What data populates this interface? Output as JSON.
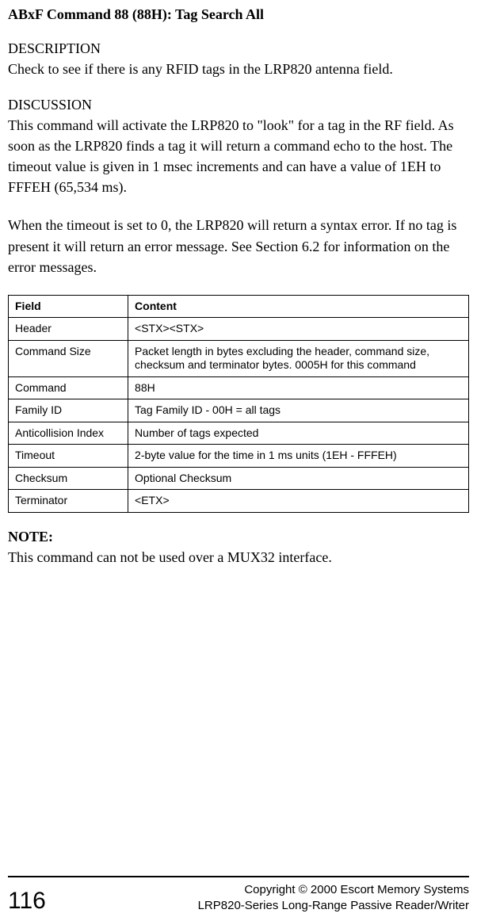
{
  "title": "ABxF Command 88 (88H): Tag Search All",
  "description": {
    "header": "DESCRIPTION",
    "text": "Check to see if there is any RFID tags in the LRP820 antenna field."
  },
  "discussion": {
    "header": "DISCUSSION",
    "p1": "This command will activate the LRP820 to \"look\" for a tag in the RF field. As soon as the LRP820 finds a tag it will return a command echo to the host. The timeout value is given in 1 msec increments and can have a value of 1EH to FFFEH (65,534 ms).",
    "p2": "When the timeout is set to 0, the LRP820 will return a syntax error. If no tag is present it will return an error message.  See Section 6.2 for information on the error messages."
  },
  "table": {
    "header_field": "Field",
    "header_content": "Content",
    "rows": [
      {
        "field": "Header",
        "content": "<STX><STX>"
      },
      {
        "field": "Command Size",
        "content": "Packet length in bytes excluding the header, command size, checksum and terminator bytes.  0005H for this command"
      },
      {
        "field": "Command",
        "content": "88H"
      },
      {
        "field": "Family ID",
        "content": "Tag Family ID - 00H = all tags"
      },
      {
        "field": "Anticollision Index",
        "content": "Number of tags expected"
      },
      {
        "field": "Timeout",
        "content": "2-byte value for the time in 1 ms units (1EH - FFFEH)"
      },
      {
        "field": "Checksum",
        "content": "Optional Checksum"
      },
      {
        "field": "Terminator",
        "content": "<ETX>"
      }
    ]
  },
  "note": {
    "header": "NOTE:",
    "text": "This command can not be used over a MUX32 interface."
  },
  "footer": {
    "page_number": "116",
    "copyright": "Copyright © 2000 Escort Memory Systems",
    "product": "LRP820-Series Long-Range Passive Reader/Writer"
  }
}
